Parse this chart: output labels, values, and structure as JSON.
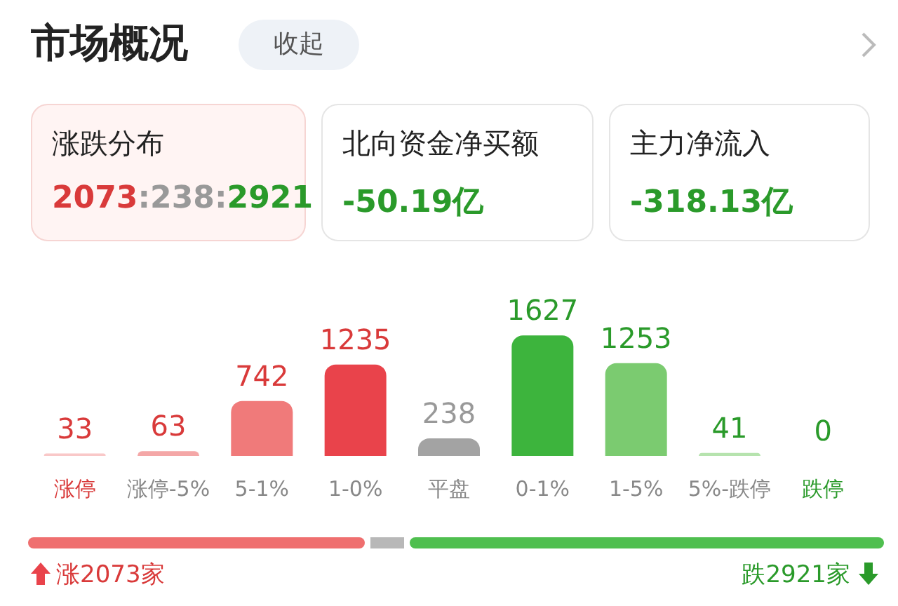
{
  "chart_data": {
    "type": "bar",
    "title": "市场概况",
    "categories": [
      "涨停",
      "涨停-5%",
      "5-1%",
      "1-0%",
      "平盘",
      "0-1%",
      "1-5%",
      "5%-跌停",
      "跌停"
    ],
    "values": [
      33,
      63,
      742,
      1235,
      238,
      1627,
      1253,
      41,
      0
    ],
    "colors": [
      "#f9c8c8",
      "#f4a7a7",
      "#f07a7a",
      "#e9434b",
      "#a3a3a3",
      "#3db43d",
      "#7bcb70",
      "#b6e3ae",
      "#d9efd5"
    ],
    "data_labels": true,
    "annotations": [
      "收起",
      "涨跌分布",
      "2073:238:2921",
      "北向资金净买额",
      "-50.19亿",
      "主力净流入",
      "-318.13亿",
      "涨2073家",
      "跌2921家"
    ]
  }
}
